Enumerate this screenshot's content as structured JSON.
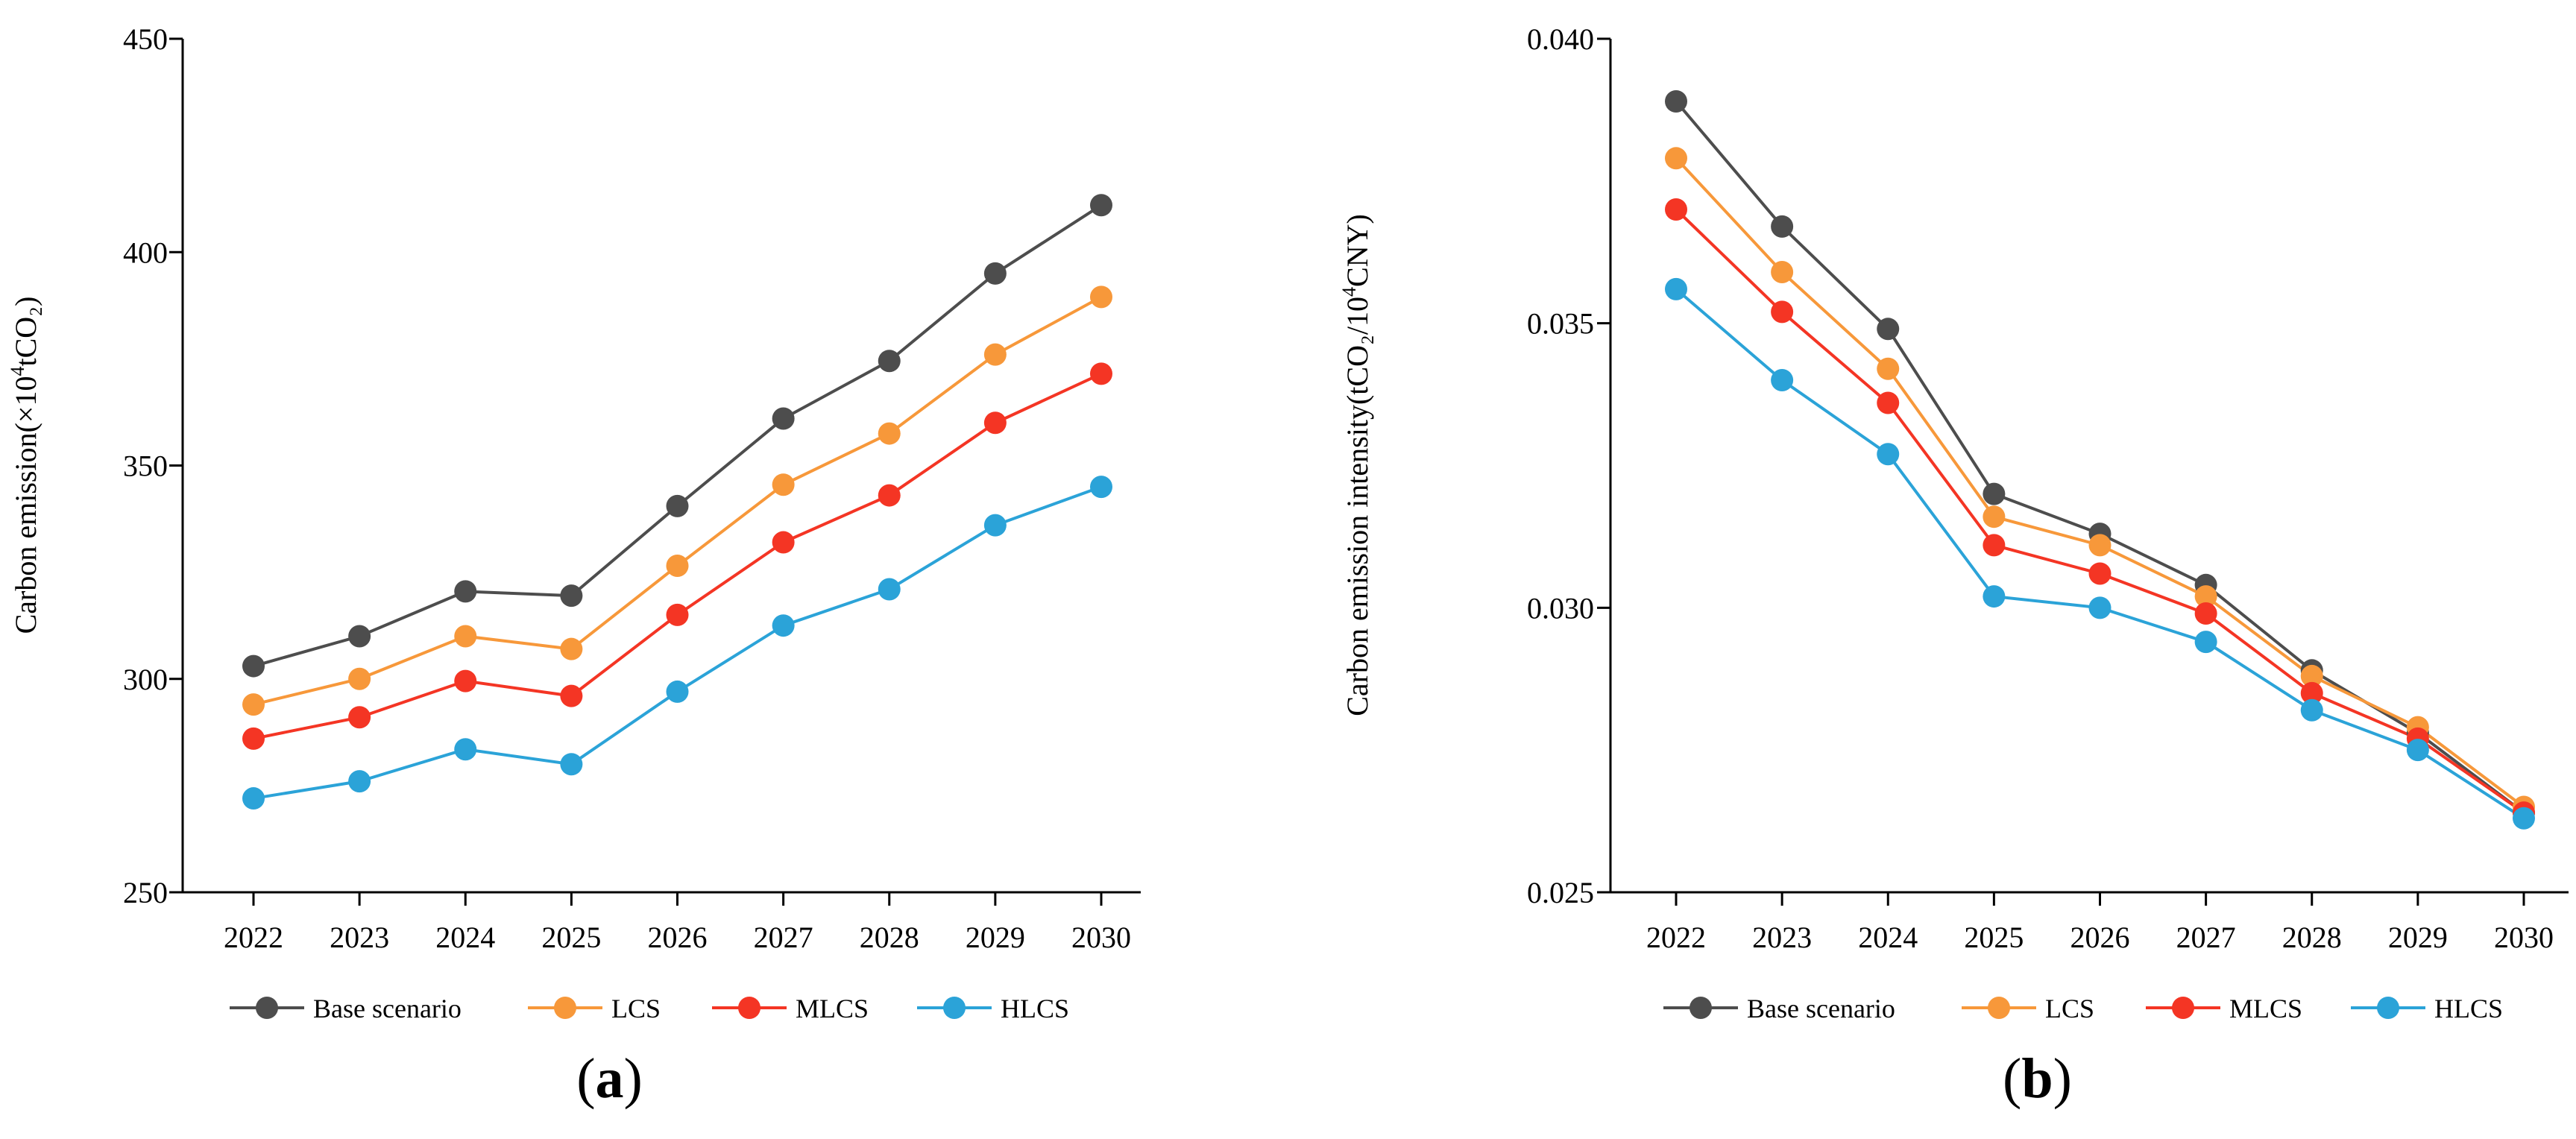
{
  "colors": {
    "base": "#4d4d4d",
    "lcs": "#f7983a",
    "mlcs": "#f43524",
    "hlcs": "#2ba3d8",
    "axis": "#000000"
  },
  "chart_data": [
    {
      "type": "line",
      "panel_label": "(a)",
      "panel_letter": "a",
      "ylabel_main": "Carbon emission(×10",
      "ylabel_sup": "4",
      "ylabel_tail": "tCO₂)",
      "categories": [
        "2022",
        "2023",
        "2024",
        "2025",
        "2026",
        "2027",
        "2028",
        "2029",
        "2030"
      ],
      "ylim": [
        250,
        450
      ],
      "yticks": [
        250,
        300,
        350,
        400,
        450
      ],
      "ytick_labels": [
        "250",
        "300",
        "350",
        "400",
        "450"
      ],
      "series": [
        {
          "name": "Base scenario",
          "key": "base",
          "values": [
            303,
            310,
            320.5,
            319.5,
            340.5,
            361,
            374.5,
            395,
            411
          ]
        },
        {
          "name": "LCS",
          "key": "lcs",
          "values": [
            294,
            300,
            310,
            307,
            326.5,
            345.5,
            357.5,
            376,
            389.5
          ]
        },
        {
          "name": "MLCS",
          "key": "mlcs",
          "values": [
            286,
            291,
            299.5,
            296,
            315,
            332,
            343,
            360,
            371.5
          ]
        },
        {
          "name": "HLCS",
          "key": "hlcs",
          "values": [
            272,
            276,
            283.5,
            280,
            297,
            312.5,
            321,
            336,
            345
          ]
        }
      ]
    },
    {
      "type": "line",
      "panel_label": "(b)",
      "panel_letter": "b",
      "ylabel_main": "Carbon emission intensity(tCO₂/10",
      "ylabel_sup": "4",
      "ylabel_tail": "CNY)",
      "categories": [
        "2022",
        "2023",
        "2024",
        "2025",
        "2026",
        "2027",
        "2028",
        "2029",
        "2030"
      ],
      "ylim": [
        0.025,
        0.04
      ],
      "yticks": [
        0.025,
        0.03,
        0.035,
        0.04
      ],
      "ytick_labels": [
        "0.025",
        "0.030",
        "0.035",
        "0.040"
      ],
      "series": [
        {
          "name": "Base scenario",
          "key": "base",
          "values": [
            0.0389,
            0.0367,
            0.0349,
            0.032,
            0.0313,
            0.0304,
            0.0289,
            0.0278,
            0.0264
          ]
        },
        {
          "name": "LCS",
          "key": "lcs",
          "values": [
            0.0379,
            0.0359,
            0.0342,
            0.0316,
            0.0311,
            0.0302,
            0.0288,
            0.0279,
            0.0265
          ]
        },
        {
          "name": "MLCS",
          "key": "mlcs",
          "values": [
            0.037,
            0.0352,
            0.0336,
            0.0311,
            0.0306,
            0.0299,
            0.0285,
            0.0277,
            0.0264
          ]
        },
        {
          "name": "HLCS",
          "key": "hlcs",
          "values": [
            0.0356,
            0.034,
            0.0327,
            0.0302,
            0.03,
            0.0294,
            0.0282,
            0.0275,
            0.0263
          ]
        }
      ]
    }
  ]
}
